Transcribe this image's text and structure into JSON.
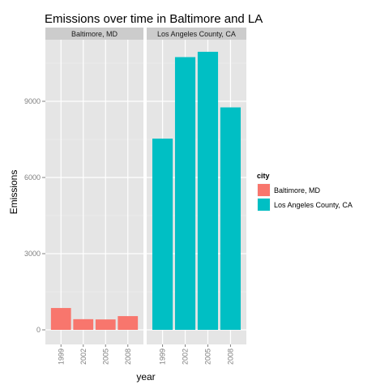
{
  "chart_data": {
    "type": "bar",
    "title": "Emissions over time in Baltimore and LA",
    "xlabel": "year",
    "ylabel": "Emissions",
    "ylim": [
      0,
      11500
    ],
    "yticks": [
      0,
      3000,
      6000,
      9000
    ],
    "grid": true,
    "legend_position": "right",
    "legend": {
      "title": "city",
      "entries": [
        {
          "label": "Baltimore, MD",
          "color": "#F8766D"
        },
        {
          "label": "Los Angeles County, CA",
          "color": "#00BFC4"
        }
      ]
    },
    "facets": [
      {
        "label": "Baltimore, MD",
        "color": "#F8766D",
        "categories": [
          "1999",
          "2002",
          "2005",
          "2008"
        ],
        "values": [
          860,
          420,
          410,
          540
        ]
      },
      {
        "label": "Los Angeles County, CA",
        "color": "#00BFC4",
        "categories": [
          "1999",
          "2002",
          "2005",
          "2008"
        ],
        "values": [
          7530,
          10740,
          10950,
          8760
        ]
      }
    ]
  }
}
